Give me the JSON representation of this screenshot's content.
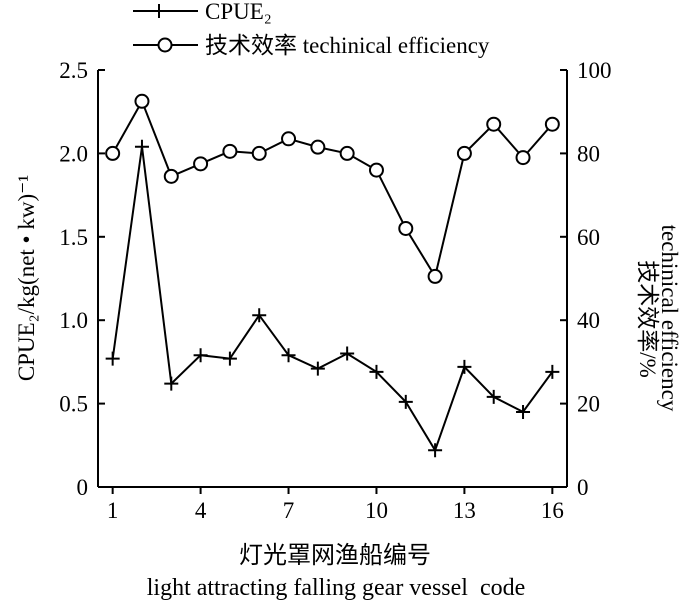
{
  "chart_data": {
    "type": "line",
    "title": "",
    "legend": {
      "placement": "top",
      "entries": [
        {
          "label": "CPUE₂",
          "marker": "plus"
        },
        {
          "label": "技术效率 techinical efficiency",
          "marker": "circle"
        }
      ]
    },
    "x": [
      1,
      2,
      3,
      4,
      5,
      6,
      7,
      8,
      9,
      10,
      11,
      12,
      13,
      14,
      15,
      16
    ],
    "xticks": [
      1,
      4,
      7,
      10,
      13,
      16
    ],
    "xlim": [
      0.5,
      16.5
    ],
    "xlabel_cn": "灯光罩网渔船编号",
    "xlabel_en": "light attracting falling gear vessel  code",
    "ylabel_left": "CPUE₂/kg(net • kw)⁻¹",
    "ylabel_right_cn": "技术效率/%",
    "ylabel_right_en": "techinical efficiency",
    "ylim_left": [
      0,
      2.5
    ],
    "yticks_left": [
      "0",
      "0.5",
      "1.0",
      "1.5",
      "2.0",
      "2.5"
    ],
    "ylim_right": [
      0,
      100
    ],
    "yticks_right": [
      "0",
      "20",
      "40",
      "60",
      "80",
      "100"
    ],
    "grid": false,
    "series": [
      {
        "name": "CPUE₂",
        "axis": "left",
        "marker": "plus",
        "values": [
          0.77,
          2.04,
          0.62,
          0.79,
          0.77,
          1.03,
          0.79,
          0.71,
          0.8,
          0.69,
          0.51,
          0.22,
          0.72,
          0.54,
          0.45,
          0.69
        ]
      },
      {
        "name": "技术效率 techinical efficiency",
        "axis": "right",
        "marker": "circle",
        "values": [
          80,
          92.5,
          74.5,
          77.5,
          80.5,
          80,
          83.5,
          81.5,
          80,
          76,
          62,
          50.5,
          80,
          87,
          79,
          87
        ]
      }
    ]
  }
}
